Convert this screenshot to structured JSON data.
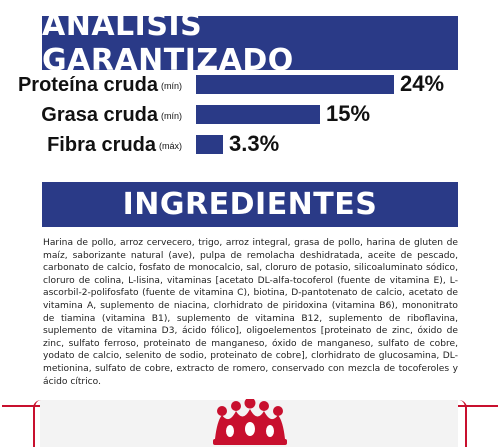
{
  "analysis": {
    "title": "ANÁLISIS GARANTIZADO",
    "rows": [
      {
        "name": "Proteína cruda",
        "unit": "(mín)",
        "value": "24%",
        "fraction": 0.24
      },
      {
        "name": "Grasa cruda",
        "unit": "(mín)",
        "value": "15%",
        "fraction": 0.15
      },
      {
        "name": "Fibra cruda",
        "unit": "(máx)",
        "value": "3.3%",
        "fraction": 0.033
      }
    ]
  },
  "ingredients": {
    "title": "INGREDIENTES",
    "text": "Harina de pollo, arroz cervecero, trigo, arroz integral, grasa de pollo, harina de gluten de maíz, saborizante natural (ave), pulpa de remolacha deshidratada, aceite de pescado, carbonato de calcio, fosfato de monocalcio, sal, cloruro de potasio, silicoaluminato sódico, cloruro de colina, L-lisina, vitaminas [acetato DL-alfa-tocoferol (fuente de vitamina E), L-ascorbil-2-polifosfato (fuente de vitamina C), biotina, D-pantotenato de calcio, acetato de vitamina A, suplemento de niacina, clorhidrato de piridoxina (vitamina B6), mononitrato de tiamina (vitamina B1), suplemento de vitamina B12, suplemento de riboflavina, suplemento de vitamina D3, ácido fólico], oligoelementos [proteinato de zinc, óxido de zinc, sulfato ferroso, proteinato de manganeso, óxido de manganeso, sulfato de cobre, yodato de calcio, selenito de sodio, proteinato de cobre], clorhidrato de glucosamina, DL-metionina, sulfato de cobre, extracto de romero, conservado con mezcla de tocoferoles y ácido cítrico."
  },
  "colors": {
    "banner": "#2a3a87",
    "bar": "#2a3a87",
    "accent": "#c8102e",
    "footer": "#f3f3f3"
  },
  "footer": {
    "logo": "royal-crown-icon"
  }
}
